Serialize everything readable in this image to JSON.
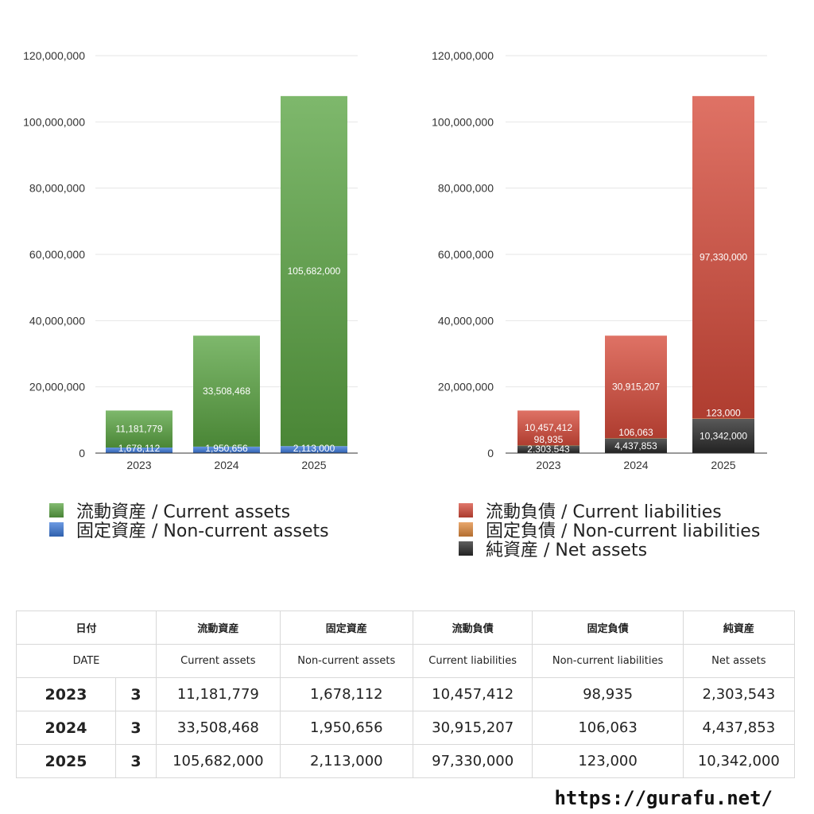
{
  "chart_data": [
    {
      "type": "bar",
      "stacked": true,
      "categories": [
        "2023",
        "2024",
        "2025"
      ],
      "ylim": [
        0,
        120000000
      ],
      "yticks": [
        0,
        20000000,
        40000000,
        60000000,
        80000000,
        100000000,
        120000000
      ],
      "ytick_labels": [
        "0",
        "20,000,000",
        "40,000,000",
        "60,000,000",
        "80,000,000",
        "100,000,000",
        "120,000,000"
      ],
      "grid": true,
      "legend_position": "bottom",
      "series": [
        {
          "name": "固定資産 / Non-current assets",
          "values": [
            1678112,
            1950656,
            2113000
          ],
          "labels": [
            "1,678,112",
            "1,950,656",
            "2,113,000"
          ],
          "color": "#3b78d8"
        },
        {
          "name": "流動資産 / Current assets",
          "values": [
            11181779,
            33508468,
            105682000
          ],
          "labels": [
            "11,181,779",
            "33,508,468",
            "105,682,000"
          ],
          "color": "#5aa442"
        }
      ],
      "legend": [
        {
          "name": "流動資産 / Current assets",
          "color": "#5aa442"
        },
        {
          "name": "固定資産 / Non-current assets",
          "color": "#3b78d8"
        }
      ]
    },
    {
      "type": "bar",
      "stacked": true,
      "categories": [
        "2023",
        "2024",
        "2025"
      ],
      "ylim": [
        0,
        120000000
      ],
      "yticks": [
        0,
        20000000,
        40000000,
        60000000,
        80000000,
        100000000,
        120000000
      ],
      "ytick_labels": [
        "0",
        "20,000,000",
        "40,000,000",
        "60,000,000",
        "80,000,000",
        "100,000,000",
        "120,000,000"
      ],
      "grid": true,
      "legend_position": "bottom",
      "series": [
        {
          "name": "純資産 / Net assets",
          "values": [
            2303543,
            4437853,
            10342000
          ],
          "labels": [
            "2,303,543",
            "4,437,853",
            "10,342,000"
          ],
          "color": "#2a2a2a"
        },
        {
          "name": "固定負債 / Non-current liabilities",
          "values": [
            98935,
            106063,
            123000
          ],
          "labels": [
            "98,935",
            "106,063",
            "123,000"
          ],
          "color": "#e08a3c"
        },
        {
          "name": "流動負債 / Current liabilities",
          "values": [
            10457412,
            30915207,
            97330000
          ],
          "labels": [
            "10,457,412",
            "30,915,207",
            "97,330,000"
          ],
          "color": "#d64a3a"
        }
      ],
      "legend": [
        {
          "name": "流動負債 / Current liabilities",
          "color": "#d64a3a"
        },
        {
          "name": "固定負債 / Non-current liabilities",
          "color": "#e08a3c"
        },
        {
          "name": "純資産 / Net assets",
          "color": "#2a2a2a"
        }
      ]
    }
  ],
  "table": {
    "header_jp": [
      "日付",
      "流動資産",
      "固定資産",
      "流動負債",
      "固定負債",
      "純資産"
    ],
    "header_en": [
      "DATE",
      "Current assets",
      "Non-current assets",
      "Current liabilities",
      "Non-current liabilities",
      "Net assets"
    ],
    "rows": [
      {
        "year": "2023",
        "count": "3",
        "values": [
          "11,181,779",
          "1,678,112",
          "10,457,412",
          "98,935",
          "2,303,543"
        ]
      },
      {
        "year": "2024",
        "count": "3",
        "values": [
          "33,508,468",
          "1,950,656",
          "30,915,207",
          "106,063",
          "4,437,853"
        ]
      },
      {
        "year": "2025",
        "count": "3",
        "values": [
          "105,682,000",
          "2,113,000",
          "97,330,000",
          "123,000",
          "10,342,000"
        ]
      }
    ]
  },
  "footer": {
    "url": "https://gurafu.net/"
  }
}
